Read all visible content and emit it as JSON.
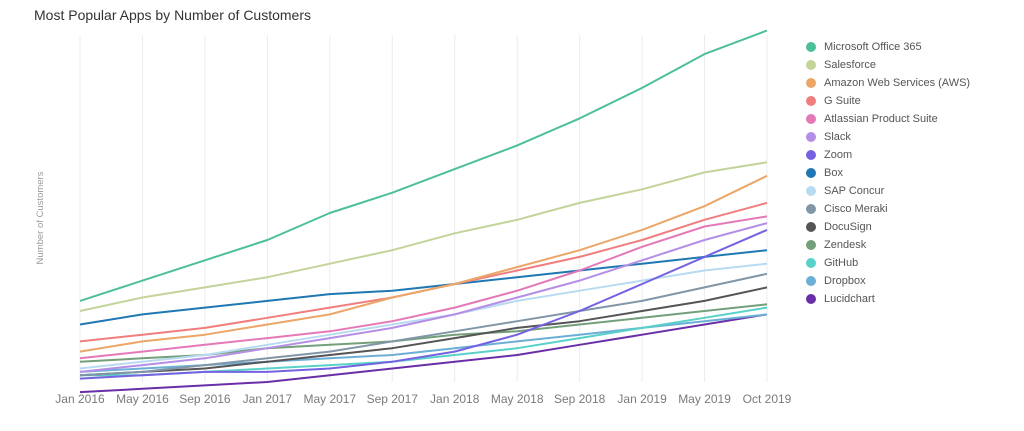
{
  "chart_data": {
    "type": "line",
    "title": "Most Popular Apps by Number of Customers",
    "ylabel": "Number of Customers",
    "xlabel": "",
    "grid": "vertical",
    "legend_position": "right",
    "x_ticks": [
      "Jan 2016",
      "May 2016",
      "Sep 2016",
      "Jan 2017",
      "May 2017",
      "Sep 2017",
      "Jan 2018",
      "May 2018",
      "Sep 2018",
      "Jan 2019",
      "May 2019",
      "Oct 2019"
    ],
    "x_note": "values are estimated relative customer counts (axis unlabeled), sampled at Jan 2016, May 2016, Sep 2016, ... Oct 2019",
    "ylim": [
      0,
      100
    ],
    "x": [
      "Jan 2016",
      "May 2016",
      "Sep 2016",
      "Jan 2017",
      "May 2017",
      "Sep 2017",
      "Jan 2018",
      "May 2018",
      "Sep 2018",
      "Jan 2019",
      "May 2019",
      "Oct 2019"
    ],
    "series": [
      {
        "name": "Microsoft Office 365",
        "color": "#4dbf99",
        "values": [
          24,
          30,
          36,
          42,
          50,
          56,
          63,
          70,
          78,
          87,
          97,
          104
        ]
      },
      {
        "name": "Salesforce",
        "color": "#c3d39a",
        "values": [
          21,
          25,
          28,
          31,
          35,
          39,
          44,
          48,
          53,
          57,
          62,
          65
        ]
      },
      {
        "name": "Amazon Web Services (AWS)",
        "color": "#eba668",
        "values": [
          9,
          12,
          14,
          17,
          20,
          25,
          29,
          34,
          39,
          45,
          52,
          61
        ]
      },
      {
        "name": "G Suite",
        "color": "#f07e7e",
        "values": [
          12,
          14,
          16,
          19,
          22,
          25,
          29,
          33,
          37,
          42,
          48,
          53
        ]
      },
      {
        "name": "Atlassian Product Suite",
        "color": "#e479b8",
        "values": [
          7,
          9,
          11,
          13,
          15,
          18,
          22,
          27,
          33,
          40,
          46,
          49
        ]
      },
      {
        "name": "Slack",
        "color": "#b58ee6",
        "values": [
          3,
          5,
          7,
          10,
          13,
          16,
          20,
          25,
          30,
          36,
          42,
          47
        ]
      },
      {
        "name": "Zoom",
        "color": "#7562e0",
        "values": [
          1,
          2,
          3,
          3,
          4,
          6,
          9,
          14,
          21,
          29,
          37,
          45
        ]
      },
      {
        "name": "Box",
        "color": "#1f78b4",
        "values": [
          17,
          20,
          22,
          24,
          26,
          27,
          29,
          31,
          33,
          35,
          37,
          39
        ]
      },
      {
        "name": "SAP Concur",
        "color": "#b8dbf2",
        "values": [
          4,
          6,
          8,
          11,
          14,
          17,
          20,
          24,
          27,
          30,
          33,
          35
        ]
      },
      {
        "name": "Cisco Meraki",
        "color": "#8197a8",
        "values": [
          2,
          3,
          5,
          7,
          9,
          12,
          15,
          18,
          21,
          24,
          28,
          32
        ]
      },
      {
        "name": "DocuSign",
        "color": "#555555",
        "values": [
          2,
          3,
          4,
          6,
          8,
          10,
          13,
          16,
          18,
          21,
          24,
          28
        ]
      },
      {
        "name": "Zendesk",
        "color": "#73a07a",
        "values": [
          6,
          7,
          8,
          10,
          11,
          12,
          14,
          15,
          17,
          19,
          21,
          23
        ]
      },
      {
        "name": "GitHub",
        "color": "#58d1c9",
        "values": [
          2,
          2,
          3,
          4,
          5,
          6,
          8,
          10,
          13,
          16,
          19,
          22
        ]
      },
      {
        "name": "Dropbox",
        "color": "#6cafd6",
        "values": [
          3,
          4,
          5,
          6,
          7,
          8,
          10,
          12,
          14,
          16,
          18,
          20
        ]
      },
      {
        "name": "Lucidchart",
        "color": "#6a2fa8",
        "values": [
          -3,
          -2,
          -1,
          0,
          2,
          4,
          6,
          8,
          11,
          14,
          17,
          20
        ]
      }
    ]
  }
}
